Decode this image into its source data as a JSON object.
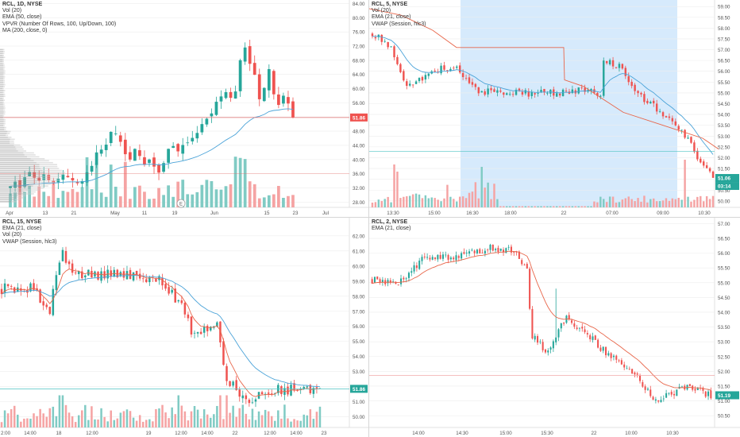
{
  "colors": {
    "up": "#26a69a",
    "down": "#ef5350",
    "vol_up": "#80cbc4",
    "vol_down": "#f5a3a3",
    "ema": "#4ba3d8",
    "vwap": "#e8664a",
    "price_line": "#e57373",
    "session_bg": "#cfe6fb",
    "grid": "#eeeeee",
    "text": "#555555"
  },
  "panes": [
    {
      "legend": [
        "RCL, 1D, NYSE",
        "Vol (20)",
        "EMA (50, close)",
        "VPVR (Number Of Rows, 100, Up/Down, 100)",
        "MA (200, close, 0)"
      ],
      "price_label": "51.86",
      "x_labels": [
        "Apr",
        "13",
        "21",
        "May",
        "11",
        "19",
        "Jun",
        "15",
        "23",
        "Jul"
      ],
      "event_marker": "E"
    },
    {
      "legend": [
        "RCL, 5, NYSE",
        "Vol (20)",
        "EMA (21, close)",
        "VWAP (Session, hlc3)"
      ],
      "price_label": "51.06",
      "countdown_label": "03:14",
      "x_labels": [
        "13:30",
        "15:00",
        "16:30",
        "18:00",
        "22",
        "07:00",
        "09:00",
        "10:30"
      ]
    },
    {
      "legend": [
        "RCL, 15, NYSE",
        "EMA (21, close)",
        "Vol (20)",
        "VWAP (Session, hlc3)"
      ],
      "price_label": "51.86",
      "x_labels": [
        "2:00",
        "14:00",
        "18",
        "12:00",
        "19",
        "12:00",
        "14:00",
        "22",
        "12:00",
        "14:00",
        "23"
      ]
    },
    {
      "legend": [
        "RCL, 2, NYSE",
        "EMA (21, close)"
      ],
      "price_label": "51.19",
      "x_labels": [
        "14:00",
        "14:30",
        "15:00",
        "15:30",
        "22",
        "10:00",
        "10:30",
        "11:00",
        "11:30"
      ]
    }
  ],
  "chart_data": [
    {
      "type": "candlestick",
      "title": "RCL, 1D, NYSE",
      "y_ticks": [
        "84.00",
        "80.00",
        "76.00",
        "72.00",
        "68.00",
        "64.00",
        "60.00",
        "56.00",
        "52.00",
        "48.00",
        "44.00",
        "40.00",
        "36.00",
        "32.00",
        "28.00"
      ],
      "ylim": [
        26.5,
        85
      ],
      "x_ticks": [
        "Apr",
        "13",
        "21",
        "May",
        "11",
        "19",
        "Jun",
        "15",
        "23",
        "Jul"
      ],
      "last_price": 51.86,
      "close": [
        32.5,
        33.8,
        32.1,
        35.0,
        36.5,
        34.9,
        34.0,
        35.9,
        34.2,
        33.5,
        34.6,
        35.8,
        35.0,
        34.1,
        33.3,
        33.9,
        36.4,
        38.2,
        42.0,
        42.8,
        44.2,
        47.8,
        47.3,
        45.0,
        41.5,
        40.0,
        43.0,
        41.0,
        38.5,
        40.0,
        38.0,
        36.3,
        39.0,
        43.0,
        43.8,
        42.3,
        44.1,
        44.8,
        46.1,
        47.5,
        50.0,
        51.5,
        53.0,
        56.3,
        57.8,
        59.0,
        57.4,
        59.2,
        68.0,
        71.6,
        67.0,
        63.9,
        57.0,
        60.2,
        65.5,
        58.4,
        55.4,
        58.0,
        55.8,
        51.9
      ],
      "ema50_sample": [
        69.5,
        58.0,
        52.0,
        47.0,
        44.5,
        42.0,
        41.0,
        42.5,
        45.0,
        48.0,
        51.9
      ]
    },
    {
      "type": "candlestick",
      "title": "RCL, 5, NYSE",
      "y_ticks": [
        "59.00",
        "58.50",
        "58.00",
        "57.50",
        "57.00",
        "56.50",
        "56.00",
        "55.50",
        "55.00",
        "54.50",
        "54.00",
        "53.50",
        "53.00",
        "52.50",
        "52.00",
        "51.50",
        "51.00",
        "50.50",
        "50.00"
      ],
      "ylim": [
        49.7,
        59.3
      ],
      "x_ticks": [
        "13:30",
        "15:00",
        "16:30",
        "18:00",
        "22",
        "07:00",
        "09:00",
        "10:30"
      ],
      "last_price": 51.06,
      "session_shaded": [
        "15:50",
        "09:45"
      ],
      "vwap_sample": [
        58.9,
        57.8,
        57.1,
        57.1,
        57.1,
        55.6,
        54.0,
        53.0,
        52.4
      ]
    },
    {
      "type": "candlestick",
      "title": "RCL, 15, NYSE",
      "y_ticks": [
        "63.00",
        "62.00",
        "61.00",
        "60.00",
        "59.00",
        "58.00",
        "57.00",
        "56.00",
        "55.00",
        "54.00",
        "53.00",
        "52.00",
        "51.00",
        "50.00"
      ],
      "ylim": [
        49.3,
        63.2
      ],
      "x_ticks": [
        "2:00",
        "14:00",
        "18",
        "12:00",
        "19",
        "12:00",
        "14:00",
        "22",
        "12:00",
        "14:00",
        "23"
      ],
      "last_price": 51.86
    },
    {
      "type": "candlestick",
      "title": "RCL, 2, NYSE",
      "y_ticks": [
        "57.00",
        "56.50",
        "56.00",
        "55.50",
        "55.00",
        "54.50",
        "54.00",
        "53.50",
        "53.00",
        "52.50",
        "52.00",
        "51.50",
        "51.00",
        "50.50"
      ],
      "ylim": [
        50.1,
        57.2
      ],
      "x_ticks": [
        "14:00",
        "14:30",
        "15:00",
        "15:30",
        "22",
        "10:00",
        "10:30",
        "11:00",
        "11:30"
      ],
      "last_price": 51.19,
      "hline": 51.86
    }
  ]
}
